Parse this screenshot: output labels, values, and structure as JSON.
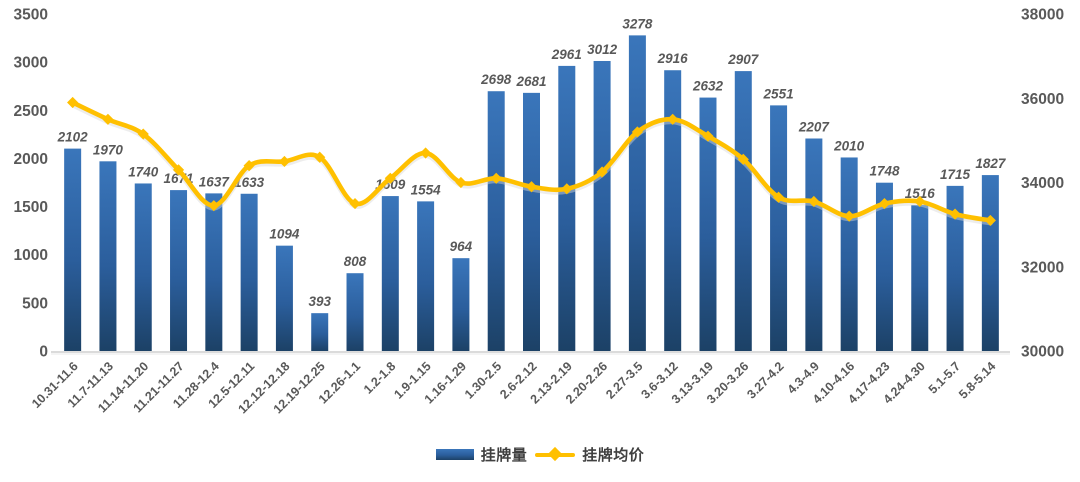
{
  "chart_data": {
    "type": "bar",
    "subtype": "bar-and-line-combo",
    "title": "",
    "xlabel": "",
    "ylabel_left": "",
    "ylabel_right": "",
    "grid": false,
    "legend_position": "bottom",
    "categories": [
      "10.31-11.6",
      "11.7-11.13",
      "11.14-11.20",
      "11.21-11.27",
      "11.28-12.4",
      "12.5-12.11",
      "12.12-12.18",
      "12.19-12.25",
      "12.26-1.1",
      "1.2-1.8",
      "1.9-1.15",
      "1.16-1.29",
      "1.30-2.5",
      "2.6-2.12",
      "2.13-2.19",
      "2.20-2.26",
      "2.27-3.5",
      "3.6-3.12",
      "3.13-3.19",
      "3.20-3.26",
      "3.27-4.2",
      "4.3-4.9",
      "4.10-4.16",
      "4.17-4.23",
      "4.24-4.30",
      "5.1-5.7",
      "5.8-5.14"
    ],
    "series": [
      {
        "name": "挂牌量",
        "type": "bar",
        "axis": "left",
        "color_top": "#3A76BB",
        "color_bottom": "#1C4166",
        "values": [
          2102,
          1970,
          1740,
          1671,
          1637,
          1633,
          1094,
          393,
          808,
          1609,
          1554,
          964,
          2698,
          2681,
          2961,
          3012,
          3278,
          2916,
          2632,
          2907,
          2551,
          2207,
          2010,
          1748,
          1516,
          1715,
          1827
        ],
        "labels_visible": true
      },
      {
        "name": "挂牌均价",
        "type": "line",
        "axis": "right",
        "color": "#FFC000",
        "marker": "diamond",
        "smooth": true,
        "values": [
          35900,
          35500,
          35150,
          34300,
          33450,
          34400,
          34500,
          34600,
          33500,
          34100,
          34700,
          34000,
          34100,
          33900,
          33850,
          34250,
          35200,
          35500,
          35100,
          34550,
          33650,
          33550,
          33200,
          33500,
          33550,
          33250,
          33100
        ],
        "labels_visible": false
      }
    ],
    "left_axis": {
      "min": 0,
      "max": 3500,
      "step": 500,
      "ticks": [
        0,
        500,
        1000,
        1500,
        2000,
        2500,
        3000,
        3500
      ]
    },
    "right_axis": {
      "min": 30000,
      "max": 38000,
      "step": 2000,
      "ticks": [
        30000,
        32000,
        34000,
        36000,
        38000
      ]
    }
  },
  "style": {
    "axis_text_color": "#595959",
    "data_label_color": "#595959",
    "axis_line_color": "#CFCFCF",
    "background": "#ffffff"
  }
}
